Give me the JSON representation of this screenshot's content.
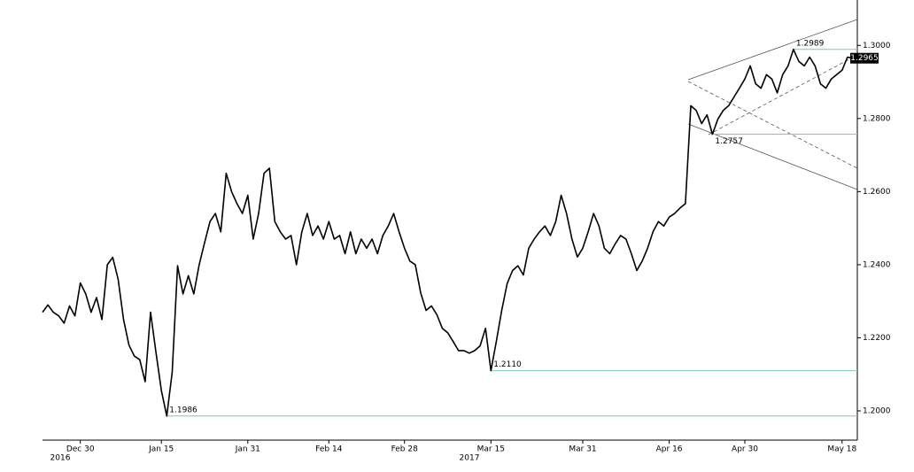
{
  "chart_data": {
    "type": "line",
    "categories": [
      null,
      null,
      null,
      null,
      null,
      null,
      null,
      "Dec 30",
      null,
      null,
      null,
      null,
      null,
      null,
      null,
      null,
      null,
      null,
      null,
      null,
      null,
      null,
      "Jan 15",
      null,
      null,
      null,
      null,
      null,
      null,
      null,
      null,
      null,
      null,
      null,
      null,
      null,
      null,
      null,
      "Jan 31",
      null,
      null,
      null,
      null,
      null,
      null,
      null,
      null,
      null,
      null,
      null,
      null,
      null,
      null,
      "Feb 14",
      null,
      null,
      null,
      null,
      null,
      null,
      null,
      null,
      null,
      null,
      null,
      null,
      null,
      "Feb 28",
      null,
      null,
      null,
      null,
      null,
      null,
      null,
      null,
      null,
      null,
      null,
      null,
      null,
      null,
      null,
      "Mar 15",
      null,
      null,
      null,
      null,
      null,
      null,
      null,
      null,
      null,
      null,
      null,
      null,
      null,
      null,
      null,
      null,
      "Mar 31",
      null,
      null,
      null,
      null,
      null,
      null,
      null,
      null,
      null,
      null,
      null,
      null,
      null,
      null,
      null,
      "Apr 16",
      null,
      null,
      null,
      null,
      null,
      null,
      null,
      null,
      null,
      null,
      null,
      null,
      null,
      "Apr 30",
      null,
      null,
      null,
      null,
      null,
      null,
      null,
      null,
      null,
      null,
      null,
      null,
      null,
      null,
      null,
      null,
      null,
      "May 18",
      null,
      null
    ],
    "values": [
      1.227,
      1.229,
      1.227,
      1.226,
      1.224,
      1.2287,
      1.226,
      1.235,
      1.232,
      1.227,
      1.231,
      1.225,
      1.24,
      1.242,
      1.236,
      1.225,
      1.218,
      1.215,
      1.214,
      1.208,
      1.227,
      1.216,
      1.2056,
      1.1986,
      1.2105,
      1.2397,
      1.232,
      1.237,
      1.232,
      1.24,
      1.246,
      1.2518,
      1.254,
      1.249,
      1.265,
      1.26,
      1.2567,
      1.254,
      1.259,
      1.247,
      1.254,
      1.265,
      1.2664,
      1.2518,
      1.249,
      1.247,
      1.248,
      1.24,
      1.249,
      1.254,
      1.248,
      1.2506,
      1.247,
      1.2518,
      1.247,
      1.248,
      1.243,
      1.249,
      1.243,
      1.247,
      1.2445,
      1.247,
      1.243,
      1.248,
      1.2506,
      1.254,
      1.249,
      1.2445,
      1.241,
      1.24,
      1.2323,
      1.2275,
      1.2287,
      1.2263,
      1.2226,
      1.2214,
      1.219,
      1.2165,
      1.2165,
      1.2158,
      1.2165,
      1.2178,
      1.2226,
      1.211,
      1.219,
      1.2275,
      1.2348,
      1.2384,
      1.2397,
      1.2372,
      1.2445,
      1.247,
      1.249,
      1.2506,
      1.248,
      1.2518,
      1.259,
      1.254,
      1.247,
      1.2421,
      1.2445,
      1.249,
      1.254,
      1.2506,
      1.2445,
      1.243,
      1.2457,
      1.248,
      1.247,
      1.243,
      1.2384,
      1.241,
      1.2445,
      1.249,
      1.2518,
      1.2506,
      1.253,
      1.254,
      1.2555,
      1.2567,
      1.2835,
      1.2822,
      1.2786,
      1.281,
      1.2757,
      1.2798,
      1.2822,
      1.2835,
      1.2859,
      1.2883,
      1.2908,
      1.2944,
      1.2895,
      1.2883,
      1.292,
      1.2908,
      1.287,
      1.292,
      1.2944,
      1.2989,
      1.2956,
      1.2944,
      1.2968,
      1.2944,
      1.2895,
      1.2883,
      1.2908,
      1.292,
      1.2932,
      1.2968,
      1.2965
    ],
    "color": "#000000",
    "ylim": [
      1.192,
      1.31
    ],
    "yticks": [
      {
        "value": 1.2,
        "label": "1.2000"
      },
      {
        "value": 1.22,
        "label": "1.2200"
      },
      {
        "value": 1.24,
        "label": "1.2400"
      },
      {
        "value": 1.26,
        "label": "1.2600"
      },
      {
        "value": 1.28,
        "label": "1.2800"
      },
      {
        "value": 1.3,
        "label": "1.3000"
      }
    ],
    "years": [
      "2016",
      "2017"
    ],
    "levels": [
      {
        "value": 1.1986,
        "label": "1.1986"
      },
      {
        "value": 1.211,
        "label": "1.2110"
      },
      {
        "value": 1.2757,
        "label": "1.2757"
      },
      {
        "value": 1.2989,
        "label": "1.2989"
      }
    ],
    "level_color": "#7cc7c0",
    "last_value": {
      "value": 1.2965,
      "label": "1.2965"
    }
  }
}
